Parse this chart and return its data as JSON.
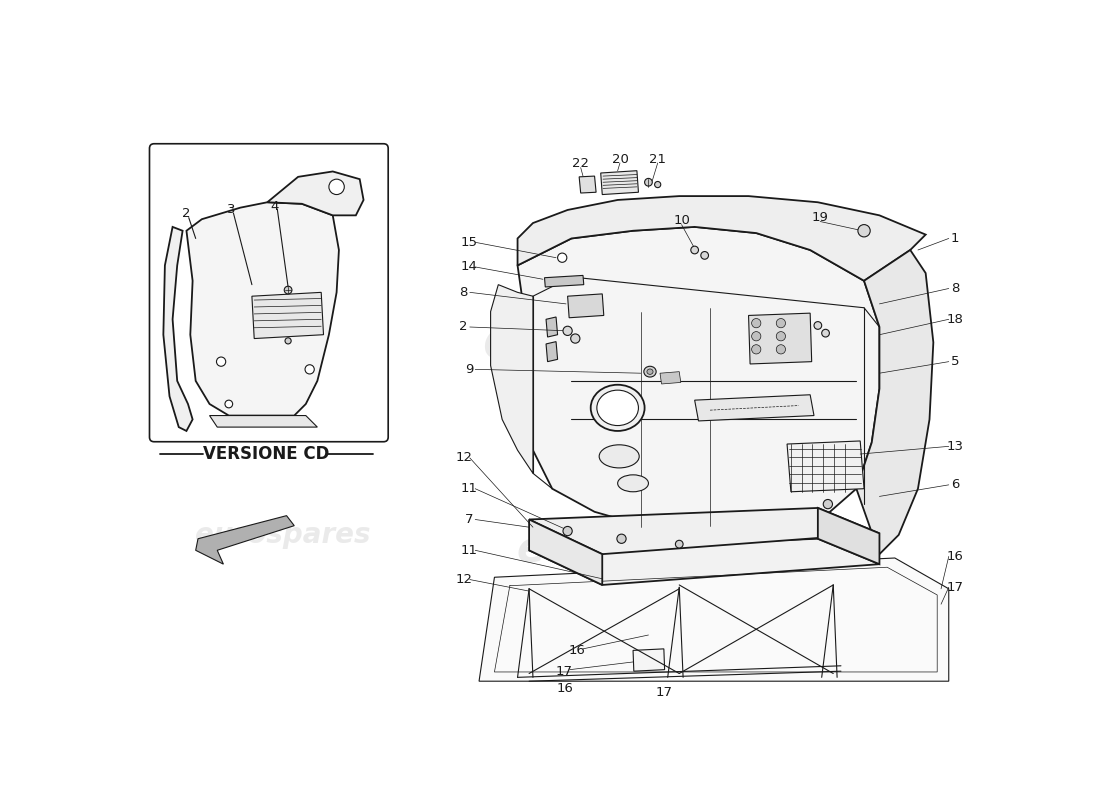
{
  "bg_color": "#ffffff",
  "line_color": "#1a1a1a",
  "lw_main": 1.3,
  "lw_thin": 0.8,
  "lw_hair": 0.5,
  "label_fs": 9.5,
  "watermark_text": "eurospares",
  "versione_cd_text": "VERSIONE CD"
}
